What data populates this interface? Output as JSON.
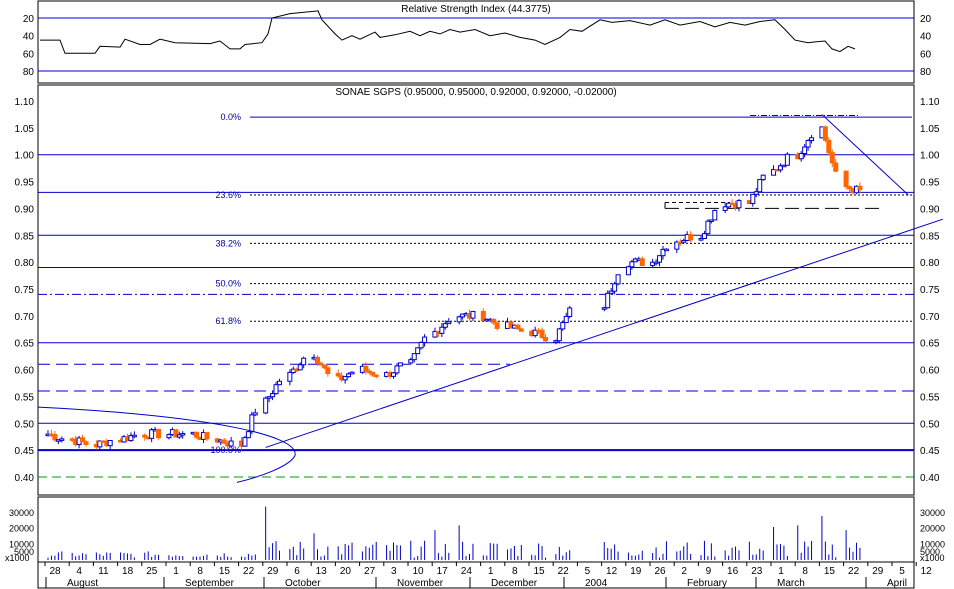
{
  "colors": {
    "up": "#0000cc",
    "down": "#ff6600",
    "line": "#0000cc",
    "frame": "#000000",
    "green": "#009900"
  },
  "rsi_panel": {
    "title": "Relative Strength Index (44.3775)",
    "ticks": [
      "80",
      "60",
      "40",
      "20"
    ]
  },
  "price_panel": {
    "title": "SONAE SGPS (0.95000, 0.95000, 0.92000, 0.92000, -0.02000)",
    "ticks": [
      "1.10",
      "1.05",
      "1.00",
      "0.95",
      "0.90",
      "0.85",
      "0.80",
      "0.75",
      "0.70",
      "0.65",
      "0.60",
      "0.55",
      "0.50",
      "0.45",
      "0.40"
    ],
    "fib_labels": [
      "0.0%",
      "23.6%",
      "38.2%",
      "50.0%",
      "61.8%",
      "100.0%"
    ]
  },
  "volume_panel": {
    "ticks": [
      "30000",
      "20000",
      "10000",
      "5000"
    ],
    "unit": "x1000"
  },
  "x_axis": {
    "day_ticks": [
      "28",
      "4",
      "11",
      "18",
      "25",
      "1",
      "8",
      "15",
      "22",
      "29",
      "6",
      "13",
      "20",
      "27",
      "3",
      "10",
      "17",
      "24",
      "1",
      "8",
      "15",
      "22",
      "5",
      "12",
      "19",
      "26",
      "2",
      "9",
      "16",
      "23",
      "1",
      "8",
      "15",
      "22",
      "29",
      "5",
      "12"
    ],
    "months": [
      "August",
      "September",
      "October",
      "November",
      "December",
      "2004",
      "February",
      "March",
      "April"
    ]
  },
  "chart_data": {
    "type": "candlestick",
    "title": "SONAE SGPS (0.95000, 0.95000, 0.92000, 0.92000, -0.02000)",
    "last": {
      "open": 0.95,
      "high": 0.95,
      "low": 0.92,
      "close": 0.92,
      "change": -0.02
    },
    "ylim": [
      0.38,
      1.12
    ],
    "x_range": [
      "2003-07-28",
      "2004-04-12"
    ],
    "weekly_close": [
      {
        "week": "2003-07-28",
        "close": 0.48
      },
      {
        "week": "2003-08-04",
        "close": 0.47
      },
      {
        "week": "2003-08-11",
        "close": 0.46
      },
      {
        "week": "2003-08-18",
        "close": 0.47
      },
      {
        "week": "2003-08-25",
        "close": 0.48
      },
      {
        "week": "2003-09-01",
        "close": 0.48
      },
      {
        "week": "2003-09-08",
        "close": 0.48
      },
      {
        "week": "2003-09-15",
        "close": 0.47
      },
      {
        "week": "2003-09-22",
        "close": 0.46
      },
      {
        "week": "2003-09-29",
        "close": 0.54
      },
      {
        "week": "2003-10-06",
        "close": 0.59
      },
      {
        "week": "2003-10-13",
        "close": 0.63
      },
      {
        "week": "2003-10-20",
        "close": 0.58
      },
      {
        "week": "2003-10-27",
        "close": 0.6
      },
      {
        "week": "2003-11-03",
        "close": 0.59
      },
      {
        "week": "2003-11-10",
        "close": 0.61
      },
      {
        "week": "2003-11-17",
        "close": 0.67
      },
      {
        "week": "2003-11-24",
        "close": 0.7
      },
      {
        "week": "2003-12-01",
        "close": 0.7
      },
      {
        "week": "2003-12-08",
        "close": 0.68
      },
      {
        "week": "2003-12-15",
        "close": 0.67
      },
      {
        "week": "2003-12-22",
        "close": 0.66
      },
      {
        "week": "2004-01-05",
        "close": 0.72
      },
      {
        "week": "2004-01-12",
        "close": 0.8
      },
      {
        "week": "2004-01-19",
        "close": 0.8
      },
      {
        "week": "2004-01-26",
        "close": 0.84
      },
      {
        "week": "2004-02-02",
        "close": 0.85
      },
      {
        "week": "2004-02-09",
        "close": 0.91
      },
      {
        "week": "2004-02-16",
        "close": 0.91
      },
      {
        "week": "2004-02-23",
        "close": 0.97
      },
      {
        "week": "2004-03-01",
        "close": 1.0
      },
      {
        "week": "2004-03-08",
        "close": 1.05
      },
      {
        "week": "2004-03-15",
        "close": 0.94
      },
      {
        "week": "2004-03-22",
        "close": 0.93
      },
      {
        "week": "2004-03-29",
        "close": 0.92
      }
    ],
    "horizontal_levels": [
      1.07,
      1.0,
      0.93,
      0.9,
      0.85,
      0.79,
      0.74,
      0.65,
      0.61,
      0.56,
      0.5,
      0.45,
      0.4
    ],
    "fibonacci": [
      {
        "label": "0.0%",
        "value": 1.07
      },
      {
        "label": "23.6%",
        "value": 0.925
      },
      {
        "label": "38.2%",
        "value": 0.835
      },
      {
        "label": "50.0%",
        "value": 0.76
      },
      {
        "label": "61.8%",
        "value": 0.69
      },
      {
        "label": "100.0%",
        "value": 0.45
      }
    ],
    "trendlines": [
      {
        "name": "support",
        "from": {
          "date": "2003-09-29",
          "value": 0.455
        },
        "to": {
          "date": "2004-04-12",
          "value": 0.88
        }
      },
      {
        "name": "resistance",
        "from": {
          "date": "2004-03-08",
          "value": 1.075
        },
        "to": {
          "date": "2004-04-02",
          "value": 0.925
        }
      }
    ],
    "rsi": {
      "value": 44.3775,
      "ylim": [
        10,
        90
      ],
      "ticks": [
        20,
        40,
        60,
        80
      ]
    },
    "volume": {
      "unit": "x1000",
      "ylim": [
        0,
        40000
      ],
      "ticks": [
        5000,
        10000,
        20000,
        30000
      ]
    }
  }
}
